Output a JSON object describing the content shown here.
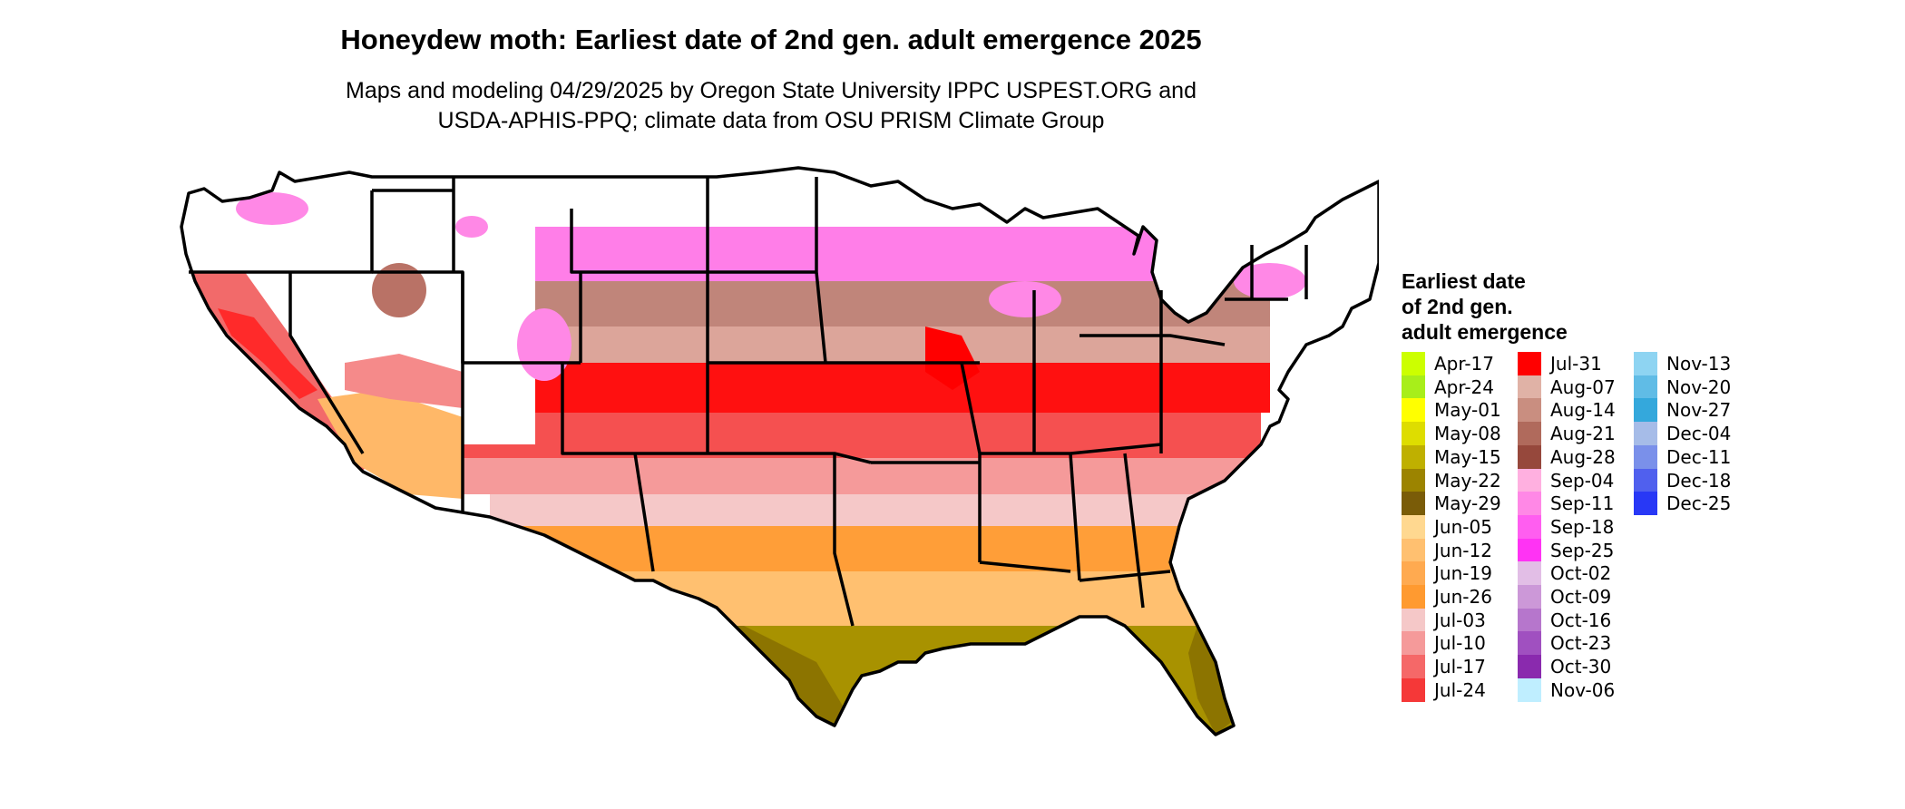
{
  "title": "Honeydew moth: Earliest date of 2nd gen. adult emergence 2025",
  "subtitle": {
    "line1": "Maps and modeling 04/29/2025 by Oregon State University IPPC USPEST.ORG and",
    "line2": "USDA-APHIS-PPQ; climate data from OSU PRISM Climate Group"
  },
  "legend": {
    "title_lines": [
      "Earliest date",
      "of 2nd gen.",
      "adult emergence"
    ],
    "items": [
      {
        "label": "Apr-17",
        "color": "#ccff00"
      },
      {
        "label": "Apr-24",
        "color": "#a8ee1a"
      },
      {
        "label": "May-01",
        "color": "#ffff00"
      },
      {
        "label": "May-08",
        "color": "#dedd00"
      },
      {
        "label": "May-15",
        "color": "#bfb000"
      },
      {
        "label": "May-22",
        "color": "#9c8400"
      },
      {
        "label": "May-29",
        "color": "#7a5c08"
      },
      {
        "label": "Jun-05",
        "color": "#ffd890"
      },
      {
        "label": "Jun-12",
        "color": "#ffc070"
      },
      {
        "label": "Jun-19",
        "color": "#ffaa50"
      },
      {
        "label": "Jun-26",
        "color": "#ff9a30"
      },
      {
        "label": "Jul-03",
        "color": "#f5c8c8"
      },
      {
        "label": "Jul-10",
        "color": "#f59a9a"
      },
      {
        "label": "Jul-17",
        "color": "#f56868"
      },
      {
        "label": "Jul-24",
        "color": "#f53838"
      },
      {
        "label": "Jul-31",
        "color": "#ff0000"
      },
      {
        "label": "Aug-07",
        "color": "#e0b2a6"
      },
      {
        "label": "Aug-14",
        "color": "#c98e80"
      },
      {
        "label": "Aug-21",
        "color": "#b06a5c"
      },
      {
        "label": "Aug-28",
        "color": "#96483c"
      },
      {
        "label": "Sep-04",
        "color": "#ffb0e0"
      },
      {
        "label": "Sep-11",
        "color": "#ff88e6"
      },
      {
        "label": "Sep-18",
        "color": "#ff5ef0"
      },
      {
        "label": "Sep-25",
        "color": "#ff33f4"
      },
      {
        "label": "Oct-02",
        "color": "#e2bee6"
      },
      {
        "label": "Oct-09",
        "color": "#cc98d8"
      },
      {
        "label": "Oct-16",
        "color": "#b676cc"
      },
      {
        "label": "Oct-23",
        "color": "#a050c0"
      },
      {
        "label": "Oct-30",
        "color": "#8a2aae"
      },
      {
        "label": "Nov-06",
        "color": "#bfeeff"
      },
      {
        "label": "Nov-13",
        "color": "#8ed4f2"
      },
      {
        "label": "Nov-20",
        "color": "#60bce6"
      },
      {
        "label": "Nov-27",
        "color": "#34a8dc"
      },
      {
        "label": "Dec-04",
        "color": "#a6bce8"
      },
      {
        "label": "Dec-11",
        "color": "#7a90ea"
      },
      {
        "label": "Dec-18",
        "color": "#5060ee"
      },
      {
        "label": "Dec-25",
        "color": "#2838f6"
      }
    ]
  }
}
